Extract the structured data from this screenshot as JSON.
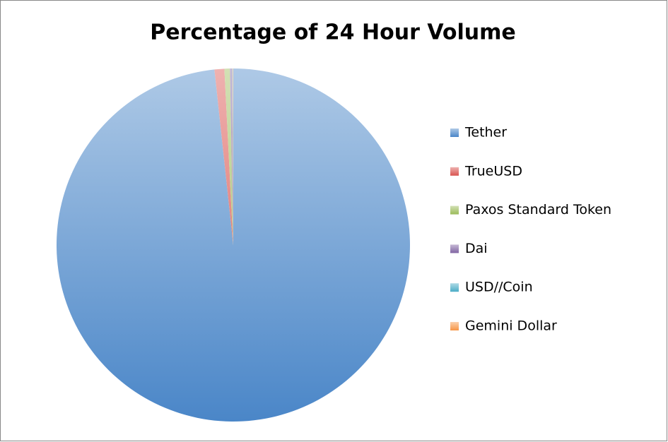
{
  "chart_data": {
    "type": "pie",
    "title": "Percentage of 24 Hour Volume",
    "categories": [
      "Tether",
      "TrueUSD",
      "Paxos Standard Token",
      "Dai",
      "USD//Coin",
      "Gemini Dollar"
    ],
    "values": [
      98.3,
      0.9,
      0.5,
      0.2,
      0.05,
      0.05
    ],
    "colors": [
      "#4a86c8",
      "#d9534f",
      "#9bbb59",
      "#8064a2",
      "#4bacc6",
      "#f79646"
    ],
    "legend": "right"
  }
}
